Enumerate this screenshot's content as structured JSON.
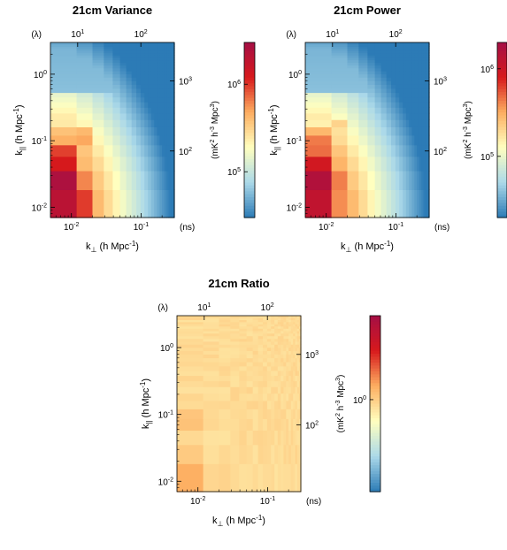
{
  "chart_data": [
    {
      "type": "heatmap",
      "title": "21cm Variance",
      "xlabel_main": "k",
      "xlabel_sub": "⊥",
      "xlabel_unit": " (h Mpc",
      "ylabel_main": "k",
      "ylabel_sub": "||",
      "ylabel_unit": " (h Mpc",
      "unit_exp": "-1",
      "unit_close": ")",
      "top_axis_label": "(λ)",
      "right_axis_label": "(ns)",
      "x_log_range": [
        0.005,
        0.3
      ],
      "y_log_range": [
        0.007,
        3.0
      ],
      "x_ticks": [
        {
          "base": "10",
          "exp": "-2",
          "value": 0.01
        },
        {
          "base": "10",
          "exp": "-1",
          "value": 0.1
        }
      ],
      "y_ticks": [
        {
          "base": "10",
          "exp": "-2",
          "value": 0.01
        },
        {
          "base": "10",
          "exp": "-1",
          "value": 0.1
        },
        {
          "base": "10",
          "exp": "0",
          "value": 1
        }
      ],
      "top_ticks": [
        {
          "base": "10",
          "exp": "1",
          "value": 10
        },
        {
          "base": "10",
          "exp": "2",
          "value": 100
        }
      ],
      "right_ticks": [
        {
          "base": "10",
          "exp": "2",
          "value": 100
        },
        {
          "base": "10",
          "exp": "3",
          "value": 1000
        }
      ],
      "colorbar_label": "(mK",
      "colorbar_label_parts": [
        "(mK",
        "2",
        " h",
        "-3",
        " Mpc",
        "3",
        ")"
      ],
      "colorbar_ticks": [
        {
          "base": "10",
          "exp": "5",
          "value": 100000
        },
        {
          "base": "10",
          "exp": "6",
          "value": 1000000
        }
      ],
      "colorbar_log_range": [
        30000,
        3000000
      ]
    },
    {
      "type": "heatmap",
      "title": "21cm Power",
      "xlabel_main": "k",
      "xlabel_sub": "⊥",
      "xlabel_unit": " (h Mpc",
      "ylabel_main": "k",
      "ylabel_sub": "||",
      "ylabel_unit": " (h Mpc",
      "unit_exp": "-1",
      "unit_close": ")",
      "top_axis_label": "(λ)",
      "right_axis_label": "(ns)",
      "x_log_range": [
        0.005,
        0.3
      ],
      "y_log_range": [
        0.007,
        3.0
      ],
      "x_ticks": [
        {
          "base": "10",
          "exp": "-2",
          "value": 0.01
        },
        {
          "base": "10",
          "exp": "-1",
          "value": 0.1
        }
      ],
      "y_ticks": [
        {
          "base": "10",
          "exp": "-2",
          "value": 0.01
        },
        {
          "base": "10",
          "exp": "-1",
          "value": 0.1
        },
        {
          "base": "10",
          "exp": "0",
          "value": 1
        }
      ],
      "top_ticks": [
        {
          "base": "10",
          "exp": "1",
          "value": 10
        },
        {
          "base": "10",
          "exp": "2",
          "value": 100
        }
      ],
      "right_ticks": [
        {
          "base": "10",
          "exp": "2",
          "value": 100
        },
        {
          "base": "10",
          "exp": "3",
          "value": 1000
        }
      ],
      "colorbar_label": "(mK",
      "colorbar_label_parts": [
        "(mK",
        "2",
        " h",
        "-3",
        " Mpc",
        "3",
        ")"
      ],
      "colorbar_ticks": [
        {
          "base": "10",
          "exp": "5",
          "value": 100000
        },
        {
          "base": "10",
          "exp": "6",
          "value": 1000000
        }
      ],
      "colorbar_log_range": [
        20000,
        2000000
      ]
    },
    {
      "type": "heatmap",
      "title": "21cm Ratio",
      "xlabel_main": "k",
      "xlabel_sub": "⊥",
      "xlabel_unit": " (h Mpc",
      "ylabel_main": "k",
      "ylabel_sub": "||",
      "ylabel_unit": " (h Mpc",
      "unit_exp": "-1",
      "unit_close": ")",
      "top_axis_label": "(λ)",
      "right_axis_label": "(ns)",
      "x_log_range": [
        0.005,
        0.3
      ],
      "y_log_range": [
        0.007,
        3.0
      ],
      "x_ticks": [
        {
          "base": "10",
          "exp": "-2",
          "value": 0.01
        },
        {
          "base": "10",
          "exp": "-1",
          "value": 0.1
        }
      ],
      "y_ticks": [
        {
          "base": "10",
          "exp": "-2",
          "value": 0.01
        },
        {
          "base": "10",
          "exp": "-1",
          "value": 0.1
        },
        {
          "base": "10",
          "exp": "0",
          "value": 1
        }
      ],
      "top_ticks": [
        {
          "base": "10",
          "exp": "1",
          "value": 10
        },
        {
          "base": "10",
          "exp": "2",
          "value": 100
        }
      ],
      "right_ticks": [
        {
          "base": "10",
          "exp": "2",
          "value": 100
        },
        {
          "base": "10",
          "exp": "3",
          "value": 1000
        }
      ],
      "colorbar_label": "(mK",
      "colorbar_label_parts": [
        "(mK",
        "2",
        " h",
        "-3",
        " Mpc",
        "3",
        ")"
      ],
      "colorbar_ticks": [
        {
          "base": "10",
          "exp": "0",
          "value": 1
        }
      ],
      "colorbar_log_range": [
        0.3,
        3.0
      ]
    }
  ],
  "colors": {
    "colormap": [
      "#2c7bb6",
      "#abd9e9",
      "#ffffbf",
      "#fdae61",
      "#d7191c",
      "#a50f45"
    ]
  }
}
